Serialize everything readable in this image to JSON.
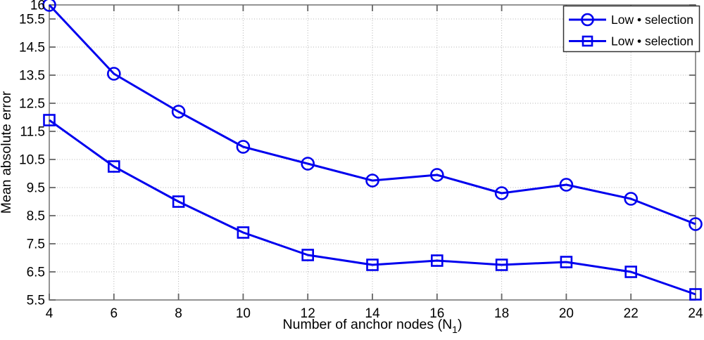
{
  "chart_data": {
    "type": "line",
    "title": "",
    "xlabel": "Number of anchor nodes (N_1)",
    "xlabel_main": "Number of anchor nodes (N",
    "xlabel_sub": "1",
    "xlabel_suffix": ")",
    "ylabel": "Mean absolute error",
    "x": [
      4,
      6,
      8,
      10,
      12,
      14,
      16,
      18,
      20,
      22,
      24
    ],
    "xticks": [
      4,
      6,
      8,
      10,
      12,
      14,
      16,
      18,
      20,
      22,
      24
    ],
    "yticks": [
      5.5,
      6.5,
      7.5,
      8.5,
      9.5,
      10.5,
      11.5,
      12.5,
      13.5,
      14.5,
      15.5,
      16
    ],
    "xlim": [
      4,
      24
    ],
    "ylim": [
      5.5,
      16
    ],
    "grid": "dotted",
    "legend_position": "top-right",
    "line_color": "#0000EE",
    "grid_color": "#b3b3b3",
    "axis_color": "#888888",
    "tick_color": "#666666",
    "series": [
      {
        "name": "Low • selection",
        "marker": "circle",
        "values": [
          16.0,
          13.55,
          12.2,
          10.95,
          10.35,
          9.75,
          9.95,
          9.3,
          9.6,
          9.1,
          8.2
        ]
      },
      {
        "name": "Low • selection",
        "marker": "square",
        "values": [
          11.9,
          10.25,
          9.0,
          7.9,
          7.1,
          6.75,
          6.9,
          6.75,
          6.85,
          6.5,
          5.7
        ]
      }
    ]
  }
}
